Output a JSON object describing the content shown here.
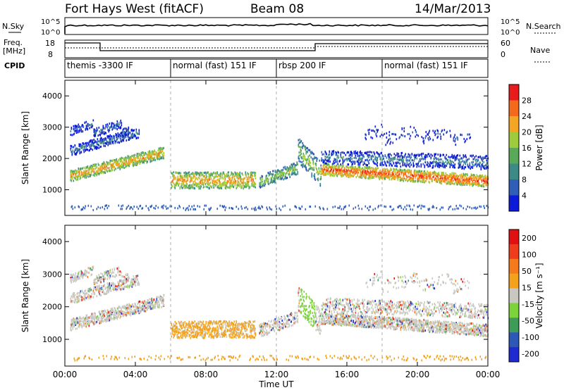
{
  "header": {
    "title": "Fort Hays West (fitACF)",
    "beam": "Beam 08",
    "date": "14/Mar/2013"
  },
  "top_strips": {
    "nsky_label": "N.Sky",
    "nsky_ticks": [
      "10^5",
      "10^0"
    ],
    "nsearch_label": "N.Search",
    "nsearch_ticks": [
      "10^5",
      "10^0"
    ],
    "freq_label": "Freq.",
    "freq_unit": "[MHz]",
    "freq_ticks": [
      "18",
      "8"
    ],
    "nave_label": "Nave",
    "nave_ticks": [
      "60",
      "0"
    ],
    "cpid_label": "CPID"
  },
  "cpid_segments": [
    {
      "label": "themis -3300 IF",
      "start": 0,
      "end": 6
    },
    {
      "label": "normal (fast) 151 IF",
      "start": 6,
      "end": 12
    },
    {
      "label": "rbsp 200 IF",
      "start": 12,
      "end": 18
    },
    {
      "label": "normal (fast) 151 IF",
      "start": 18,
      "end": 24
    }
  ],
  "chart_data": [
    {
      "type": "heatmap",
      "panel": "power",
      "ylabel": "Slant Range [km]",
      "xlabel": "Time UT",
      "x_ticks": [
        "00:00",
        "04:00",
        "08:00",
        "12:00",
        "16:00",
        "20:00",
        "00:00"
      ],
      "x_tick_hours": [
        0,
        4,
        8,
        12,
        16,
        20,
        24
      ],
      "y_ticks": [
        1000,
        2000,
        3000,
        4000
      ],
      "ylim": [
        180,
        4500
      ],
      "xlim_hours": [
        0,
        24
      ],
      "colorbar_label": "Power [dB]",
      "colorbar_ticks": [
        "4",
        "8",
        "12",
        "16",
        "20",
        "24",
        "28"
      ],
      "colors": [
        "#0b1bd8",
        "#2f5db8",
        "#3b8a86",
        "#5aa85a",
        "#9ecb3c",
        "#f2a623",
        "#f46a1c",
        "#e81c1c"
      ]
    },
    {
      "type": "heatmap",
      "panel": "velocity",
      "ylabel": "Slant Range [km]",
      "xlabel": "Time UT",
      "x_ticks": [
        "00:00",
        "04:00",
        "08:00",
        "12:00",
        "16:00",
        "20:00",
        "00:00"
      ],
      "y_ticks": [
        1000,
        2000,
        3000,
        4000
      ],
      "ylim": [
        180,
        4500
      ],
      "xlim_hours": [
        0,
        24
      ],
      "colorbar_label": "Velocity [m s⁻¹]",
      "colorbar_ticks": [
        "200",
        "100",
        "50",
        "15",
        "-15",
        "-50",
        "-100",
        "-200"
      ],
      "colors": [
        "#1f2bd0",
        "#2e58b6",
        "#3f9b58",
        "#7cd33c",
        "#c8c8c0",
        "#f4a21c",
        "#f47a1c",
        "#ef3c1c",
        "#e01010"
      ]
    }
  ],
  "xaxis_label": "Time UT"
}
